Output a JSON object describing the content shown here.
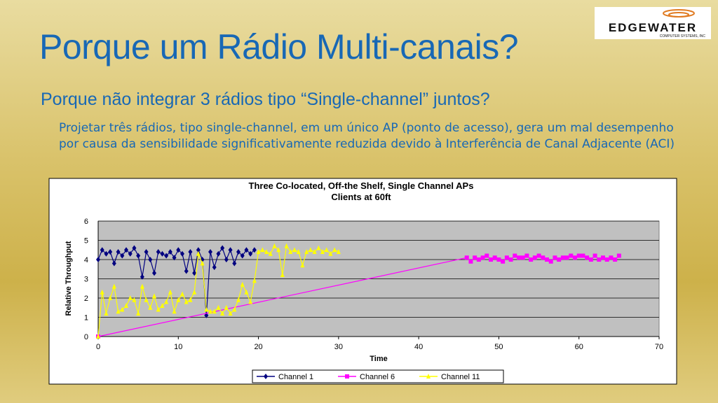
{
  "header": {
    "title": "Porque um Rádio Multi-canais?",
    "subtitle": "Porque não integrar 3 rádios tipo “Single-channel” juntos?",
    "logo": {
      "name": "EDGEWATER",
      "tagline": "COMPUTER SYSTEMS, INC"
    }
  },
  "body": {
    "text": "Projetar três rádios, tipo single-channel, em um único AP (ponto de acesso), gera um mal desempenho por causa da sensibilidade significativamente reduzida devido à Interferência de Canal Adjacente (ACI)"
  },
  "chart_data": {
    "type": "line",
    "title": "Three Co-located, Off-the Shelf, Single Channel APs",
    "subtitle": "Clients at 60ft",
    "x_label": "Time",
    "y_label": "Relative Throughput",
    "xlim": [
      0,
      70
    ],
    "xticks": [
      0,
      10,
      20,
      30,
      40,
      50,
      60,
      70
    ],
    "ylim": [
      0,
      6
    ],
    "yticks": [
      0,
      1,
      2,
      3,
      4,
      5,
      6
    ],
    "grid": true,
    "legend": "bottom",
    "series": [
      {
        "name": "Channel 1",
        "color": "#000080",
        "marker": "diamond",
        "x": [
          0,
          0.5,
          1,
          1.5,
          2,
          2.5,
          3,
          3.5,
          4,
          4.5,
          5,
          5.5,
          6,
          6.5,
          7,
          7.5,
          8,
          8.5,
          9,
          9.5,
          10,
          10.5,
          11,
          11.5,
          12,
          12.5,
          13,
          13.5,
          14,
          14.5,
          15,
          15.5,
          16,
          16.5,
          17,
          17.5,
          18,
          18.5,
          19,
          19.5
        ],
        "values": [
          4.0,
          4.5,
          4.3,
          4.4,
          3.8,
          4.4,
          4.2,
          4.5,
          4.3,
          4.6,
          4.2,
          3.1,
          4.4,
          4.0,
          3.3,
          4.4,
          4.3,
          4.2,
          4.4,
          4.1,
          4.5,
          4.3,
          3.4,
          4.4,
          3.3,
          4.5,
          4.0,
          1.1,
          4.4,
          3.6,
          4.3,
          4.6,
          4.0,
          4.5,
          3.8,
          4.4,
          4.2,
          4.5,
          4.3,
          4.5
        ]
      },
      {
        "name": "Channel 6",
        "color": "#ff00ff",
        "marker": "square",
        "x": [
          0,
          46,
          46.5,
          47,
          47.5,
          48,
          48.5,
          49,
          49.5,
          50,
          50.5,
          51,
          51.5,
          52,
          52.5,
          53,
          53.5,
          54,
          54.5,
          55,
          55.5,
          56,
          56.5,
          57,
          57.5,
          58,
          58.5,
          59,
          59.5,
          60,
          60.5,
          61,
          61.5,
          62,
          62.5,
          63,
          63.5,
          64,
          64.5,
          65
        ],
        "values": [
          0,
          4.1,
          3.9,
          4.1,
          4.0,
          4.1,
          4.2,
          4.0,
          4.1,
          4.0,
          3.9,
          4.1,
          4.0,
          4.2,
          4.1,
          4.1,
          4.2,
          4.0,
          4.1,
          4.2,
          4.1,
          4.0,
          3.9,
          4.1,
          4.0,
          4.1,
          4.1,
          4.2,
          4.1,
          4.2,
          4.2,
          4.1,
          4.0,
          4.2,
          4.0,
          4.1,
          4.0,
          4.1,
          4.0,
          4.2
        ]
      },
      {
        "name": "Channel 11",
        "color": "#ffff00",
        "marker": "triangle",
        "x": [
          0,
          0.5,
          1,
          1.5,
          2,
          2.5,
          3,
          3.5,
          4,
          4.5,
          5,
          5.5,
          6,
          6.5,
          7,
          7.5,
          8,
          8.5,
          9,
          9.5,
          10,
          10.5,
          11,
          11.5,
          12,
          12.5,
          13,
          13.5,
          14,
          14.5,
          15,
          15.5,
          16,
          16.5,
          17,
          17.5,
          18,
          18.5,
          19,
          19.5,
          20,
          20.5,
          21,
          21.5,
          22,
          22.5,
          23,
          23.5,
          24,
          24.5,
          25,
          25.5,
          26,
          26.5,
          27,
          27.5,
          28,
          28.5,
          29,
          29.5,
          30
        ],
        "values": [
          0,
          2.3,
          1.2,
          2.0,
          2.6,
          1.3,
          1.4,
          1.6,
          2.0,
          1.9,
          1.2,
          2.6,
          1.9,
          1.5,
          2.1,
          1.4,
          1.6,
          1.8,
          2.3,
          1.3,
          1.9,
          2.2,
          1.8,
          1.9,
          2.3,
          4.3,
          3.8,
          1.4,
          1.3,
          1.3,
          1.5,
          1.2,
          1.5,
          1.2,
          1.4,
          1.9,
          2.7,
          2.3,
          1.8,
          2.9,
          4.4,
          4.5,
          4.4,
          4.3,
          4.7,
          4.5,
          3.2,
          4.7,
          4.4,
          4.5,
          4.4,
          3.7,
          4.4,
          4.5,
          4.4,
          4.6,
          4.4,
          4.5,
          4.3,
          4.5,
          4.4
        ]
      }
    ]
  }
}
